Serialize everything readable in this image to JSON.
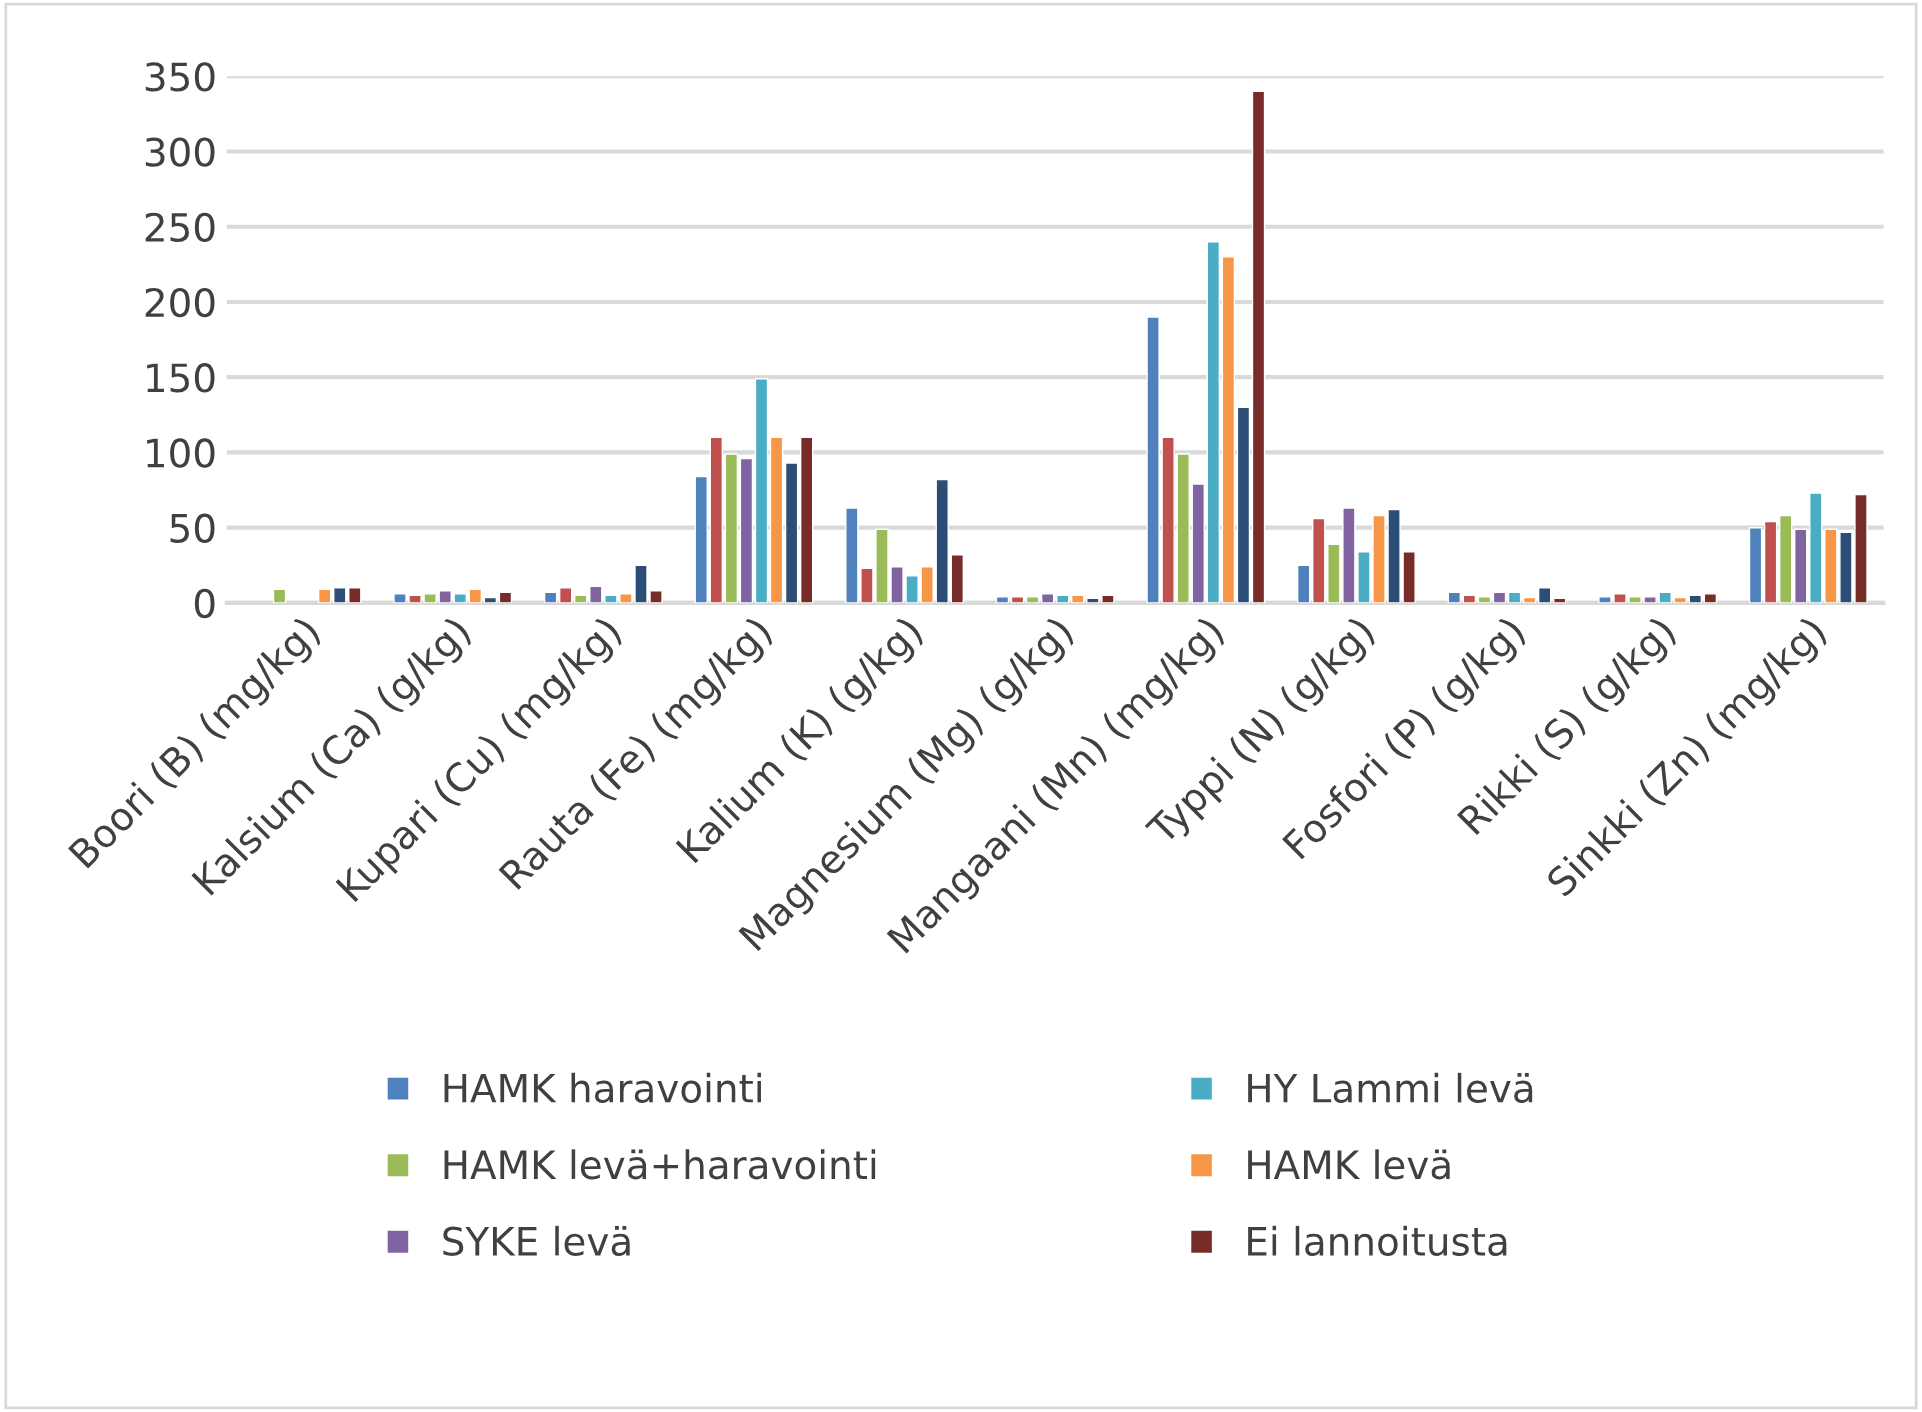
{
  "chart_data": {
    "type": "bar",
    "categories": [
      "Boori (B) (mg/kg)",
      "Kalsium (Ca) (g/kg)",
      "Kupari (Cu) (mg/kg)",
      "Rauta (Fe) (mg/kg)",
      "Kalium (K) (g/kg)",
      "Magnesium (Mg) (g/kg)",
      "Mangaani (Mn) (mg/kg)",
      "Typpi (N) (g/kg)",
      "Fosfori (P) (g/kg)",
      "Rikki (S) (g/kg)",
      "Sinkki (Zn) (mg/kg)"
    ],
    "series": [
      {
        "name": "HAMK haravointi",
        "color": "#4f81bd",
        "values": [
          null,
          6,
          7,
          84,
          63,
          4,
          190,
          25,
          7,
          4,
          50
        ]
      },
      {
        "color": "#c0504d",
        "values": [
          null,
          5,
          10,
          110,
          23,
          4,
          110,
          56,
          5,
          6,
          54
        ]
      },
      {
        "name": "HAMK levä+haravointi",
        "color": "#9bbb59",
        "values": [
          9,
          6,
          5,
          99,
          49,
          4,
          99,
          39,
          4,
          4,
          58
        ]
      },
      {
        "name": "SYKE levä",
        "color": "#8064a2",
        "values": [
          null,
          8,
          11,
          96,
          24,
          6,
          79,
          63,
          7,
          4,
          49
        ]
      },
      {
        "name": "HY Lammi levä",
        "color": "#4bacc6",
        "values": [
          null,
          6,
          5,
          149,
          18,
          5,
          240,
          34,
          7,
          7,
          73
        ]
      },
      {
        "name": "HAMK levä",
        "color": "#f79646",
        "values": [
          9,
          9,
          6,
          110,
          24,
          5,
          230,
          58,
          3.5,
          3.5,
          49
        ]
      },
      {
        "color": "#2c4d75",
        "values": [
          10,
          3.5,
          25,
          93,
          82,
          3,
          130,
          62,
          10,
          5,
          47
        ]
      },
      {
        "name": "Ei lannoitusta",
        "color": "#772c2a",
        "values": [
          10,
          7,
          8,
          110,
          32,
          5,
          340,
          34,
          3,
          6,
          72
        ]
      }
    ],
    "ylim": [
      0,
      350
    ],
    "yticks": [
      0,
      50,
      100,
      150,
      200,
      250,
      300,
      350
    ],
    "grid": "y",
    "legend": "bottom"
  }
}
